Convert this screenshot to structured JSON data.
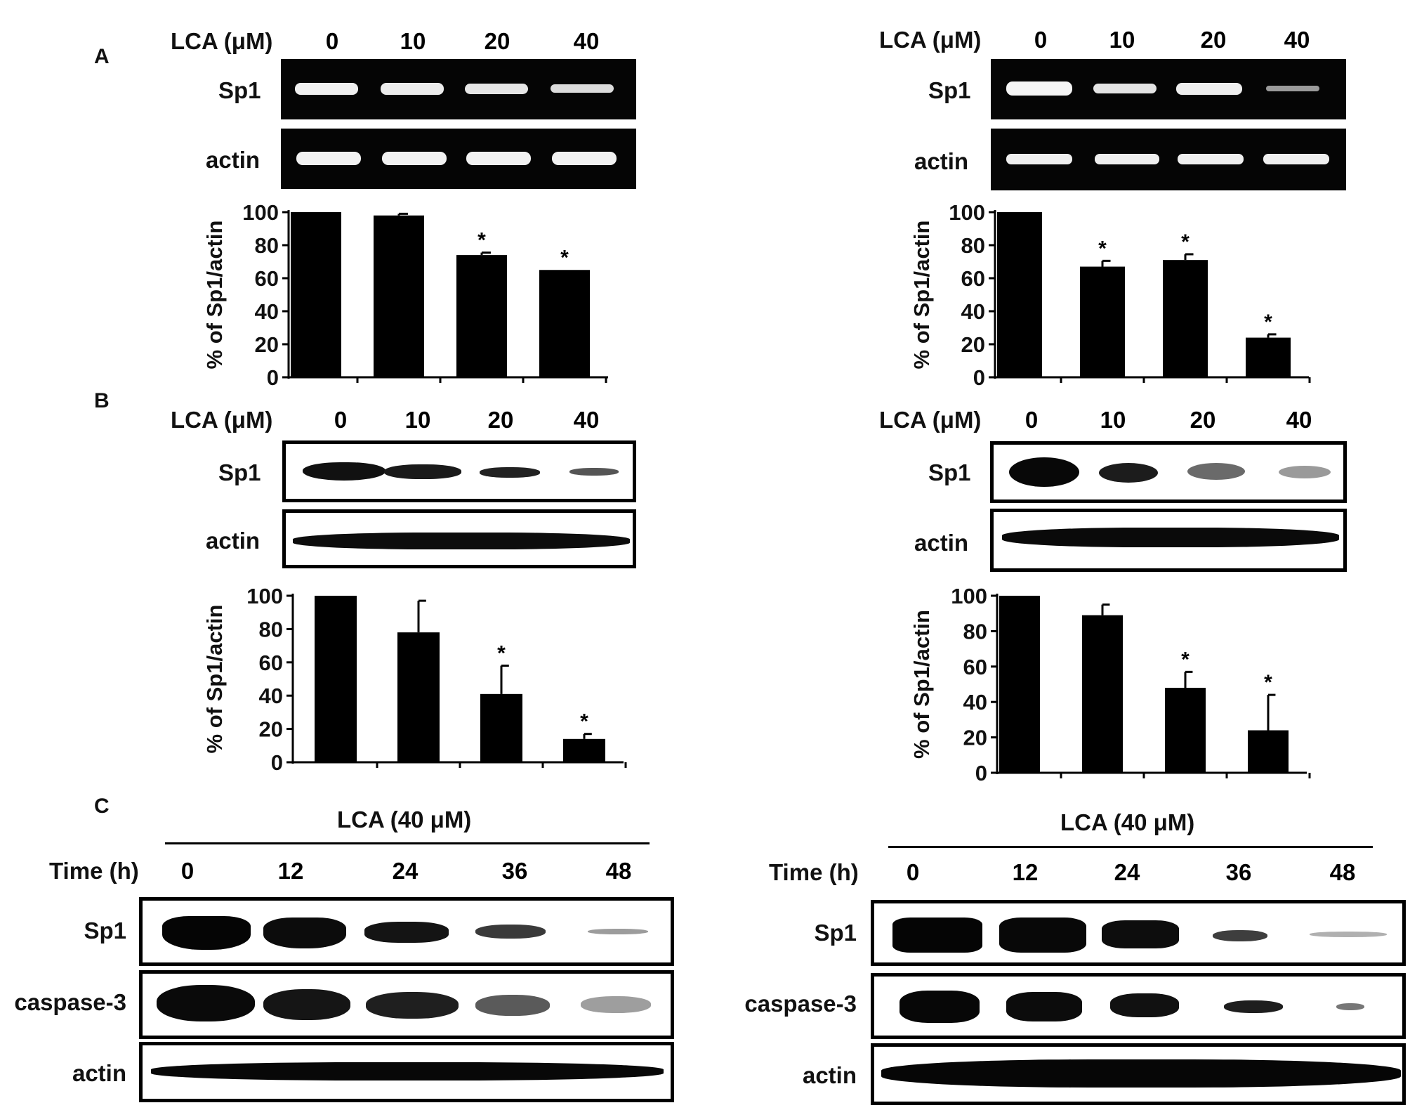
{
  "panel_letters": {
    "a": "A",
    "b": "B",
    "c": "C"
  },
  "lca_label": "LCA (μM)",
  "lca_doses": [
    "0",
    "10",
    "20",
    "40"
  ],
  "labels": {
    "sp1": "Sp1",
    "actin": "actin",
    "caspase3": "caspase-3"
  },
  "y_axis_label": "% of Sp1/actin",
  "significance_marker": "*",
  "panel_c": {
    "treatment_label": "LCA (40 μM)",
    "time_label": "Time (h)",
    "times": [
      "0",
      "12",
      "24",
      "36",
      "48"
    ]
  },
  "colors": {
    "gel_background": "#050505",
    "band": "#f2f2f2",
    "ink": "#000000"
  },
  "chart_data": [
    {
      "panel": "A-left",
      "type": "bar",
      "title": "",
      "xlabel": "",
      "ylabel": "% of Sp1/actin",
      "categories": [
        "0",
        "10",
        "20",
        "40"
      ],
      "values": [
        100,
        98,
        74,
        65
      ],
      "errors": [
        0,
        1,
        1.5,
        0
      ],
      "significant": [
        false,
        false,
        true,
        true
      ],
      "ylim": [
        0,
        100
      ],
      "yticks": [
        0,
        20,
        40,
        60,
        80,
        100
      ],
      "grid": false,
      "legend": "none"
    },
    {
      "panel": "A-right",
      "type": "bar",
      "title": "",
      "xlabel": "",
      "ylabel": "% of Sp1/actin",
      "categories": [
        "0",
        "10",
        "20",
        "40"
      ],
      "values": [
        100,
        67,
        71,
        24
      ],
      "errors": [
        0,
        3.5,
        3.5,
        2
      ],
      "significant": [
        false,
        true,
        true,
        true
      ],
      "ylim": [
        0,
        100
      ],
      "yticks": [
        0,
        20,
        40,
        60,
        80,
        100
      ],
      "grid": false,
      "legend": "none"
    },
    {
      "panel": "B-left",
      "type": "bar",
      "title": "",
      "xlabel": "",
      "ylabel": "% of Sp1/actin",
      "categories": [
        "0",
        "10",
        "20",
        "40"
      ],
      "values": [
        100,
        78,
        41,
        14
      ],
      "errors": [
        0,
        19,
        17,
        3
      ],
      "significant": [
        false,
        false,
        true,
        true
      ],
      "ylim": [
        0,
        100
      ],
      "yticks": [
        0,
        20,
        40,
        60,
        80,
        100
      ],
      "grid": false,
      "legend": "none"
    },
    {
      "panel": "B-right",
      "type": "bar",
      "title": "",
      "xlabel": "",
      "ylabel": "% of Sp1/actin",
      "categories": [
        "0",
        "10",
        "20",
        "40"
      ],
      "values": [
        100,
        89,
        48,
        24
      ],
      "errors": [
        0,
        6,
        9,
        20
      ],
      "significant": [
        false,
        false,
        true,
        true
      ],
      "ylim": [
        0,
        100
      ],
      "yticks": [
        0,
        20,
        40,
        60,
        80,
        100
      ],
      "grid": false,
      "legend": "none"
    }
  ]
}
